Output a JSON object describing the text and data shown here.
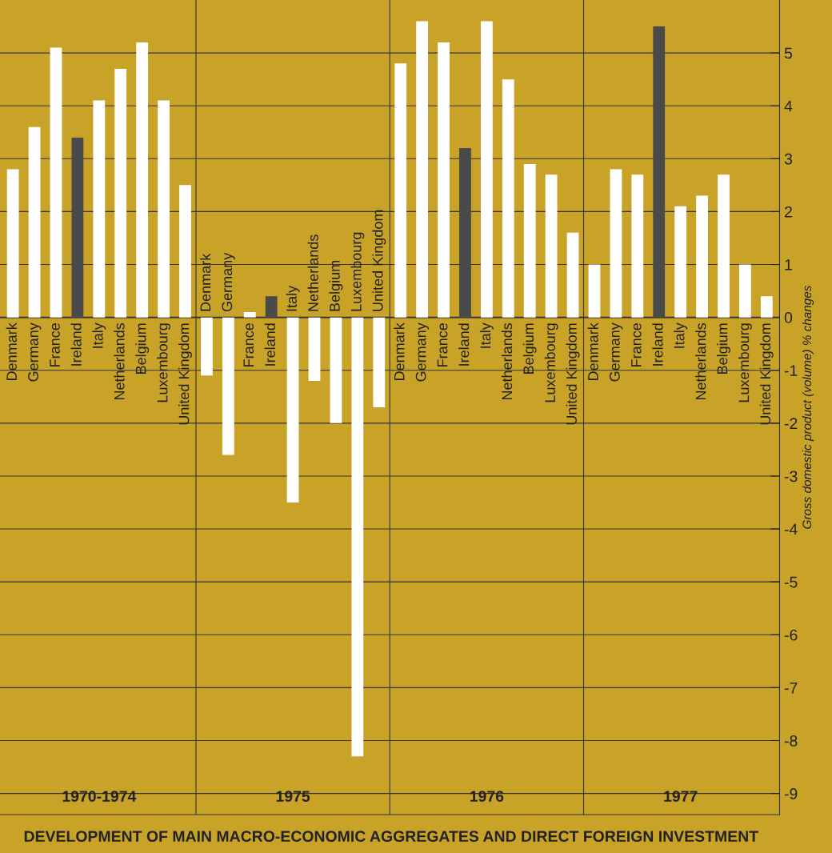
{
  "chart_data": {
    "type": "bar",
    "title": "DEVELOPMENT OF MAIN MACRO-ECONOMIC AGGREGATES AND DIRECT FOREIGN INVESTMENT",
    "ylabel": "Gross domestic product (volume) % changes",
    "categories": [
      "Denmark",
      "Germany",
      "France",
      "Ireland",
      "Italy",
      "Netherlands",
      "Belgium",
      "Luxembourg",
      "United Kingdom",
      "Denmark",
      "Germany",
      "France",
      "Ireland",
      "Italy",
      "Netherlands",
      "Belgium",
      "Luxembourg",
      "United Kingdom",
      "Denmark",
      "Germany",
      "France",
      "Ireland",
      "Italy",
      "Netherlands",
      "Belgium",
      "Luxembourg",
      "United Kingdom",
      "Denmark",
      "Germany",
      "France",
      "Ireland",
      "Italy",
      "Netherlands",
      "Belgium",
      "Luxembourg",
      "United Kingdom"
    ],
    "values": [
      2.8,
      3.6,
      5.1,
      3.4,
      4.1,
      4.7,
      5.2,
      4.1,
      2.5,
      -1.1,
      -2.6,
      0.1,
      0.4,
      -3.5,
      -1.2,
      -2.0,
      -8.3,
      -1.7,
      4.8,
      5.6,
      5.2,
      3.2,
      5.6,
      4.5,
      2.9,
      2.7,
      1.6,
      1.0,
      2.8,
      2.7,
      5.5,
      2.1,
      2.3,
      2.7,
      1.0,
      0.4
    ],
    "colors": [
      "#ffffff",
      "#ffffff",
      "#ffffff",
      "#4a4a4a",
      "#ffffff",
      "#ffffff",
      "#ffffff",
      "#ffffff",
      "#ffffff",
      "#ffffff",
      "#ffffff",
      "#ffffff",
      "#4a4a4a",
      "#ffffff",
      "#ffffff",
      "#ffffff",
      "#ffffff",
      "#ffffff",
      "#ffffff",
      "#ffffff",
      "#ffffff",
      "#4a4a4a",
      "#ffffff",
      "#ffffff",
      "#ffffff",
      "#ffffff",
      "#ffffff",
      "#ffffff",
      "#ffffff",
      "#ffffff",
      "#4a4a4a",
      "#ffffff",
      "#ffffff",
      "#ffffff",
      "#ffffff",
      "#ffffff"
    ],
    "annotations": [
      "1970-1974",
      "1975",
      "1976",
      "1977"
    ],
    "ylim": [
      -9.4,
      6.0
    ],
    "yticks": [
      -9,
      -8,
      -7,
      -6,
      -5,
      -4,
      -3,
      -2,
      -1,
      0,
      1,
      2,
      3,
      4,
      5
    ],
    "grid": true
  }
}
